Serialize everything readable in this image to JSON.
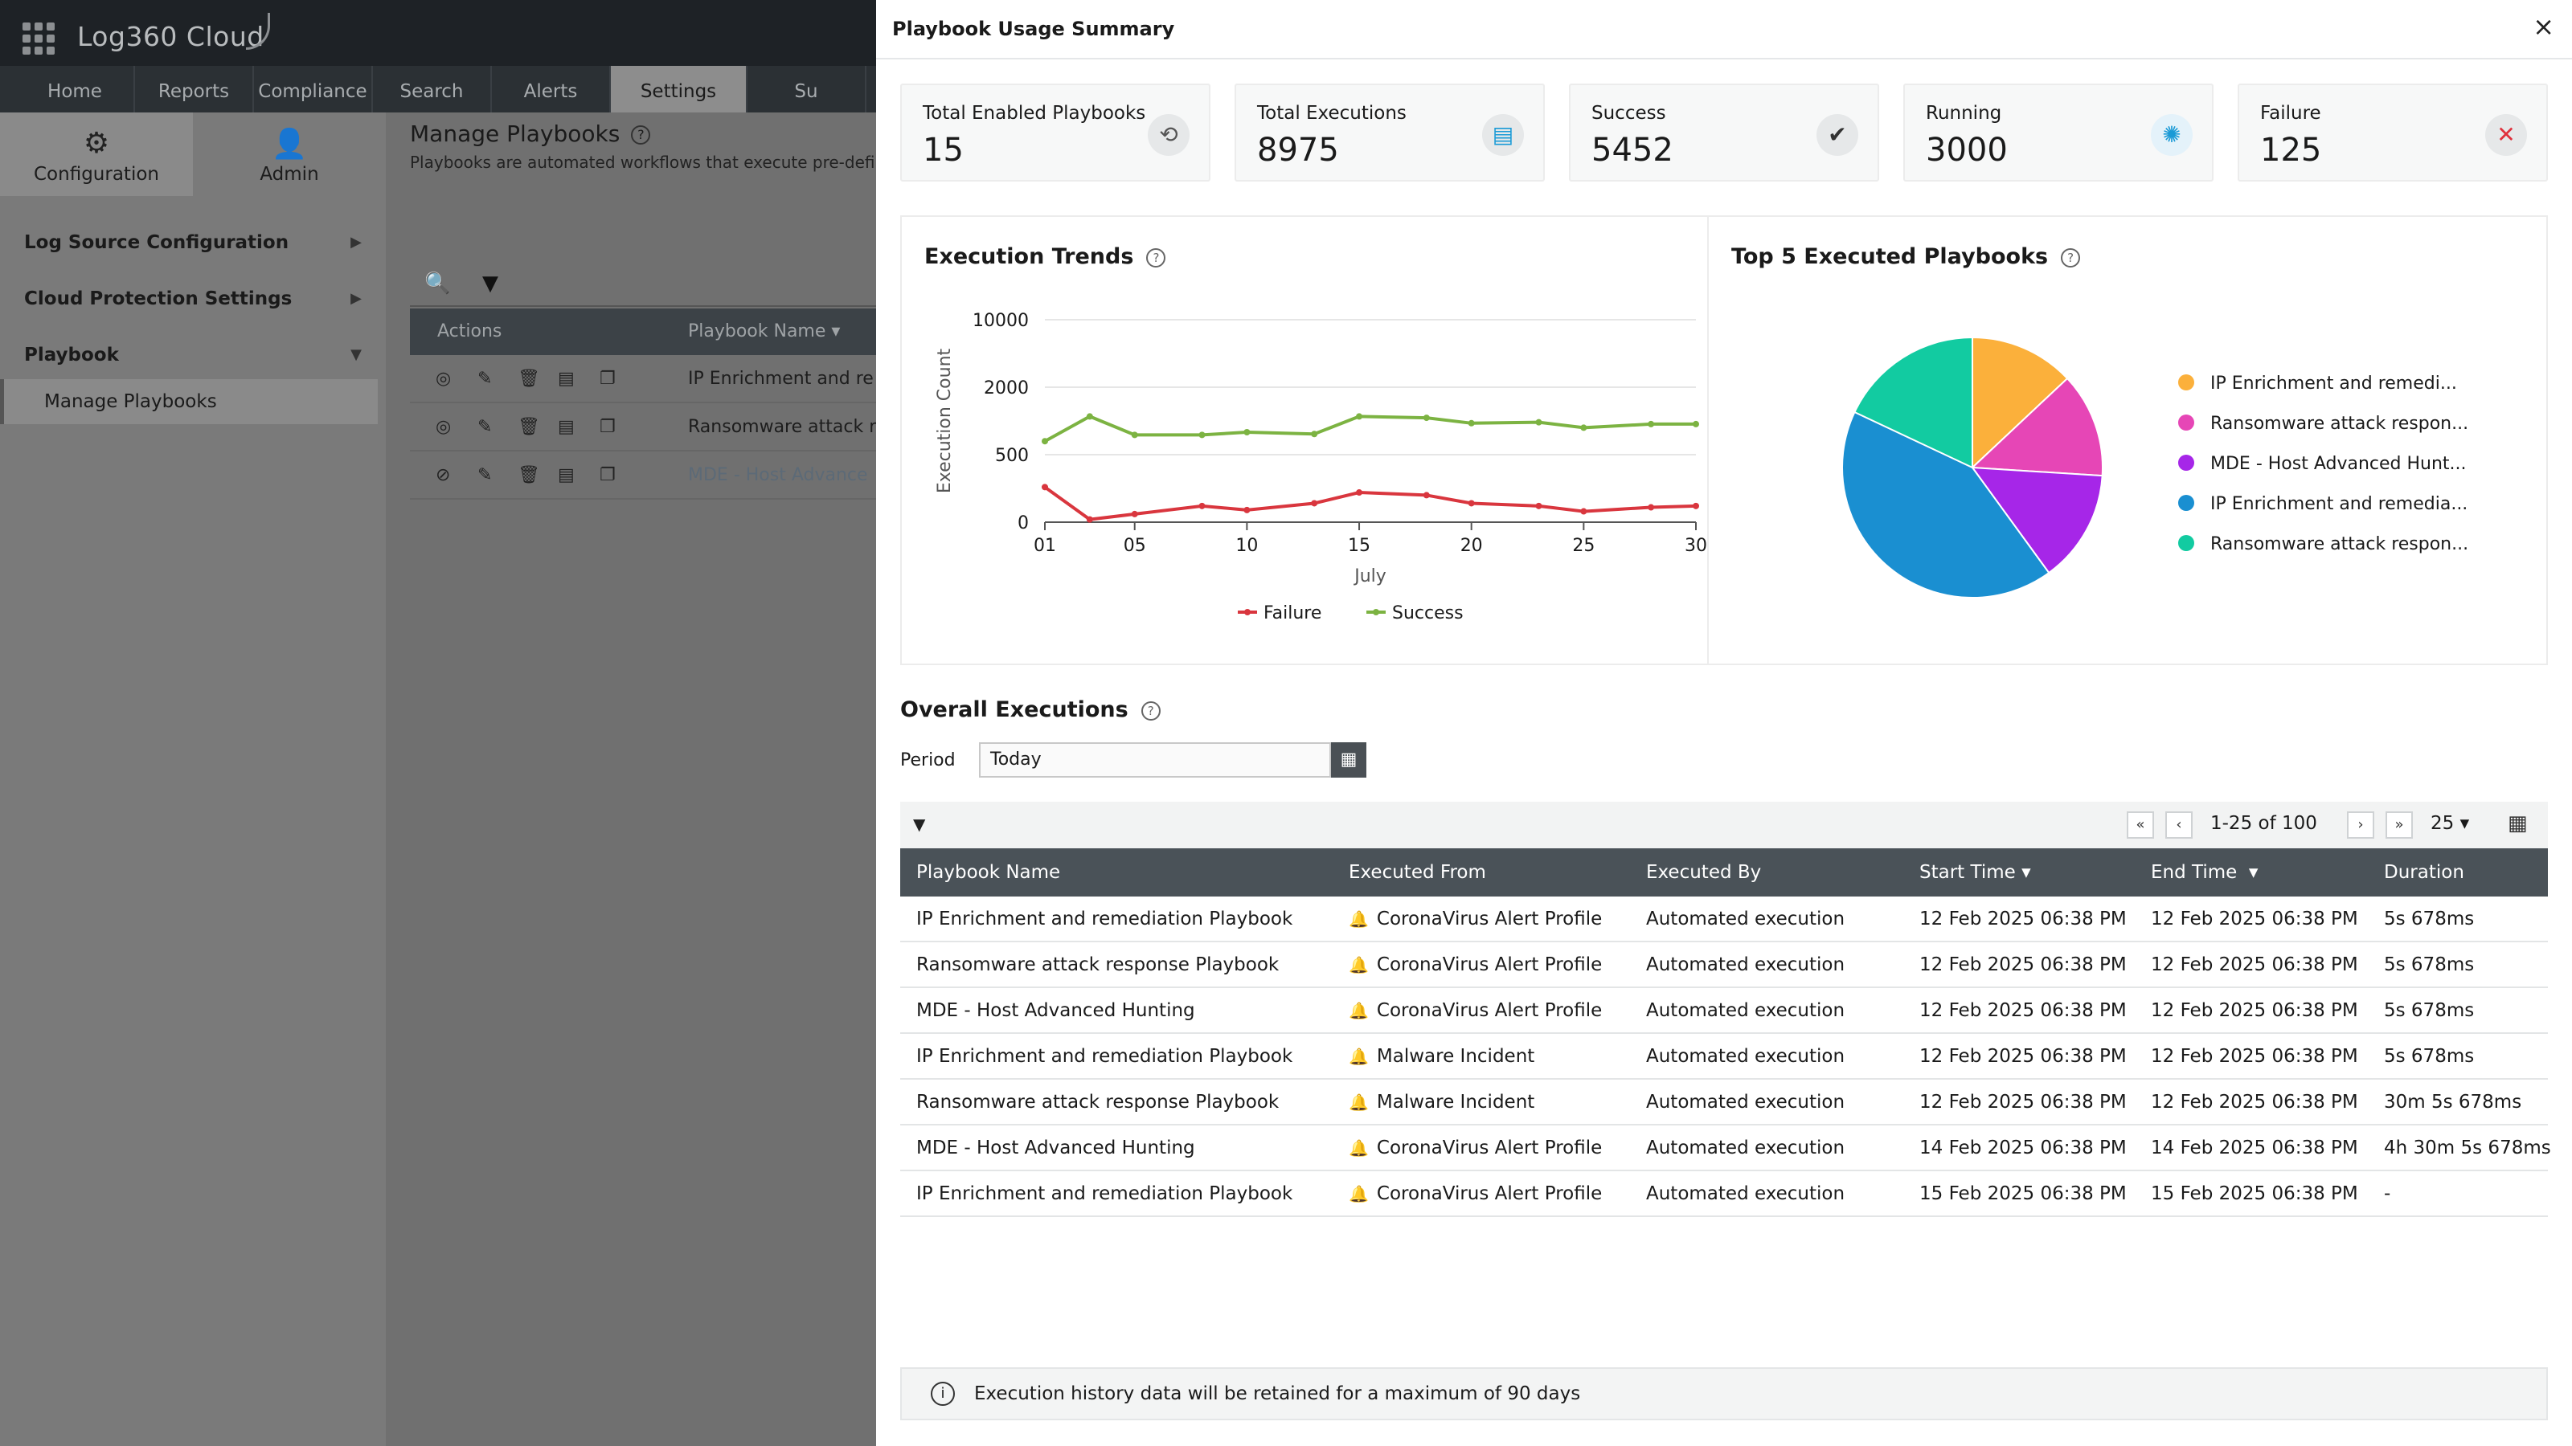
{
  "app": {
    "brand": "Log360 Cloud",
    "nav_tabs": [
      "Home",
      "Reports",
      "Compliance",
      "Search",
      "Alerts",
      "Settings",
      "Su"
    ],
    "active_tab": "Settings"
  },
  "sidebar": {
    "tabs": [
      {
        "label": "Configuration",
        "icon": "gear-icon"
      },
      {
        "label": "Admin",
        "icon": "user-icon"
      }
    ],
    "menu": [
      {
        "label": "Log Source Configuration"
      },
      {
        "label": "Cloud Protection Settings"
      },
      {
        "label": "Playbook"
      }
    ],
    "submenu": "Manage Playbooks"
  },
  "manage": {
    "title": "Manage Playbooks",
    "description": "Playbooks are automated workflows that execute pre-defi",
    "header_actions": "Actions",
    "header_name": "Playbook Name",
    "rows": [
      {
        "name": "IP Enrichment and re"
      },
      {
        "name": "Ransomware attack r"
      },
      {
        "name": "MDE - Host Advance"
      }
    ]
  },
  "modal": {
    "title": "Playbook Usage Summary",
    "close": "×",
    "cards": [
      {
        "label": "Total Enabled Playbooks",
        "value": "15",
        "icon": "playbook-icon",
        "color": "#555555"
      },
      {
        "label": "Total Executions",
        "value": "8975",
        "icon": "document-icon",
        "color": "#1a9ad6"
      },
      {
        "label": "Success",
        "value": "5452",
        "icon": "check-icon",
        "color": "#333333"
      },
      {
        "label": "Running",
        "value": "3000",
        "icon": "spinner-icon",
        "color": "#1a9ad6"
      },
      {
        "label": "Failure",
        "value": "125",
        "icon": "cross-icon",
        "color": "#e0303c"
      }
    ],
    "trends_title": "Execution Trends",
    "top5_title": "Top 5 Executed Playbooks",
    "overall_title": "Overall Executions",
    "period_label": "Period",
    "period_value": "Today",
    "pagination": "1-25 of 100",
    "page_size": "25",
    "columns": [
      "Playbook Name",
      "Executed From",
      "Executed By",
      "Start Time",
      "End Time",
      "Duration"
    ],
    "rows": [
      {
        "name": "IP Enrichment and remediation Playbook",
        "from": "CoronaVirus Alert Profile",
        "from_icon": "bell-icon",
        "by": "Automated execution",
        "start": "12 Feb 2025 06:38 PM",
        "end": "12 Feb 2025 06:38 PM",
        "duration": "5s 678ms"
      },
      {
        "name": "Ransomware attack response Playbook",
        "from": "CoronaVirus Alert Profile",
        "from_icon": "bell-icon",
        "by": "Automated execution",
        "start": "12 Feb 2025 06:38 PM",
        "end": "12 Feb 2025 06:38 PM",
        "duration": "5s 678ms"
      },
      {
        "name": "MDE - Host Advanced Hunting",
        "from": "CoronaVirus Alert Profile",
        "from_icon": "bell-icon",
        "by": "Automated execution",
        "start": "12 Feb 2025 06:38 PM",
        "end": "12 Feb 2025 06:38 PM",
        "duration": "5s 678ms"
      },
      {
        "name": "IP Enrichment and remediation Playbook",
        "from": "Malware Incident",
        "from_icon": "incident-icon",
        "by": "Automated execution",
        "start": "12 Feb 2025 06:38 PM",
        "end": "12 Feb 2025 06:38 PM",
        "duration": "5s 678ms"
      },
      {
        "name": "Ransomware attack response Playbook",
        "from": "Malware Incident",
        "from_icon": "incident-icon",
        "by": "Automated execution",
        "start": "12 Feb 2025 06:38 PM",
        "end": "12 Feb 2025 06:38 PM",
        "duration": "30m 5s 678ms"
      },
      {
        "name": "MDE - Host Advanced Hunting",
        "from": "CoronaVirus Alert Profile",
        "from_icon": "bell-icon",
        "by": "Automated execution",
        "start": "14 Feb 2025 06:38 PM",
        "end": "14 Feb 2025 06:38 PM",
        "duration": "4h 30m 5s 678ms"
      },
      {
        "name": "IP Enrichment and remediation Playbook",
        "from": "CoronaVirus Alert Profile",
        "from_icon": "bell-icon",
        "by": "Automated execution",
        "start": "15 Feb 2025 06:38 PM",
        "end": "15 Feb 2025 06:38 PM",
        "duration": "-"
      }
    ],
    "info": "Execution history data will be retained for a maximum of 90 days"
  },
  "chart_data": [
    {
      "type": "line",
      "title": "Execution Trends",
      "xlabel": "July",
      "ylabel": "Execution Count",
      "x_ticks": [
        "01",
        "05",
        "10",
        "15",
        "20",
        "25",
        "30"
      ],
      "y_ticks": [
        "0",
        "500",
        "2000",
        "10000"
      ],
      "y_scale": "nonlinear",
      "x": [
        1,
        3,
        5,
        8,
        10,
        13,
        15,
        18,
        20,
        23,
        25,
        28,
        30
      ],
      "series": [
        {
          "name": "Failure",
          "color": "#d9363e",
          "values": [
            260,
            20,
            60,
            120,
            90,
            140,
            220,
            200,
            140,
            120,
            80,
            110,
            120
          ]
        },
        {
          "name": "Success",
          "color": "#7cb342",
          "values": [
            800,
            1350,
            940,
            940,
            1000,
            960,
            1350,
            1320,
            1200,
            1220,
            1100,
            1180,
            1180
          ]
        }
      ],
      "legend": "bottom"
    },
    {
      "type": "pie",
      "title": "Top 5 Executed Playbooks",
      "slices": [
        {
          "label": "IP Enrichment and remedi...",
          "value": 13,
          "color": "#fbb03b"
        },
        {
          "label": "Ransomware attack respon...",
          "value": 13,
          "color": "#e646b6"
        },
        {
          "label": "MDE - Host Advanced Hunt...",
          "value": 14,
          "color": "#a626e8"
        },
        {
          "label": "IP Enrichment and remedia...",
          "value": 42,
          "color": "#1a8fd1"
        },
        {
          "label": "Ransomware attack respon...",
          "value": 18,
          "color": "#12cba1"
        }
      ],
      "legend": "right"
    }
  ]
}
